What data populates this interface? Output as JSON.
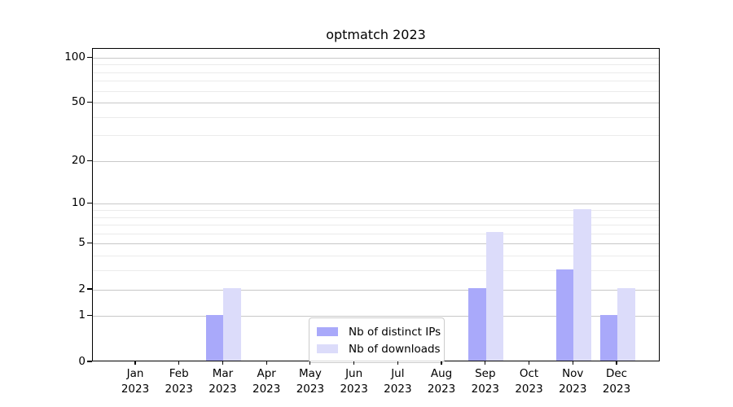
{
  "chart_data": {
    "type": "bar",
    "title": "optmatch 2023",
    "categories": [
      "Jan",
      "Feb",
      "Mar",
      "Apr",
      "May",
      "Jun",
      "Jul",
      "Aug",
      "Sep",
      "Oct",
      "Nov",
      "Dec"
    ],
    "x_tick_year": "2023",
    "series": [
      {
        "name": "Nb of distinct IPs",
        "color": "#a9a9fa",
        "values": [
          0,
          0,
          1,
          0,
          0,
          0,
          0,
          0,
          2,
          0,
          3,
          1
        ]
      },
      {
        "name": "Nb of downloads",
        "color": "#dcdcfa",
        "values": [
          0,
          0,
          2,
          0,
          0,
          0,
          0,
          0,
          6,
          0,
          9,
          2
        ]
      }
    ],
    "y_axis": {
      "scale": "log1p",
      "major_ticks": [
        0,
        1,
        2,
        5,
        10,
        20,
        50,
        100
      ],
      "minor_ticks": [
        3,
        4,
        6,
        7,
        8,
        9,
        30,
        40,
        60,
        70,
        80,
        90
      ],
      "ylim": [
        0,
        115
      ]
    },
    "xlabel": "",
    "ylabel": "",
    "grid": true,
    "legend": {
      "position": "lower center"
    },
    "colors": {
      "major_grid": "#c8c8c8",
      "minor_grid": "#ebebeb",
      "spine": "#000000"
    }
  }
}
